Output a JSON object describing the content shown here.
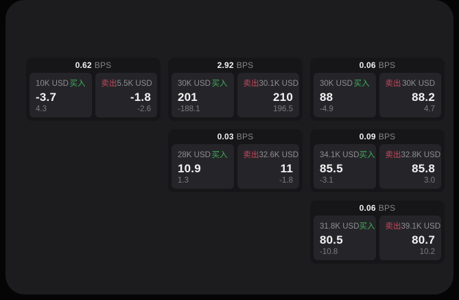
{
  "labels": {
    "bps_unit": "BPS",
    "buy": "买入",
    "sell": "卖出"
  },
  "colors": {
    "page_bg": "#050505",
    "window_bg": "#1c1c1e",
    "card_bg": "#161618",
    "panel_bg": "#252529",
    "buy_green": "#3eae5b",
    "sell_red": "#c8485f",
    "label_text": "#8e8e93",
    "big_text": "#f2f2f3",
    "delta_text": "#7c7c81",
    "unit_text": "#86868b"
  },
  "cards": [
    {
      "bps": "0.62",
      "buy": {
        "amount": "10K USD",
        "price": "-3.7",
        "delta": "4.3"
      },
      "sell": {
        "amount": "5.5K USD",
        "price": "-1.8",
        "delta": "-2.6"
      }
    },
    {
      "bps": "2.92",
      "buy": {
        "amount": "30K USD",
        "price": "201",
        "delta": "-188.1"
      },
      "sell": {
        "amount": "30.1K USD",
        "price": "210",
        "delta": "196.5"
      }
    },
    {
      "bps": "0.06",
      "buy": {
        "amount": "30K USD",
        "price": "88",
        "delta": "-4.9"
      },
      "sell": {
        "amount": "30K USD",
        "price": "88.2",
        "delta": "4.7"
      }
    },
    {
      "bps": "0.03",
      "buy": {
        "amount": "28K USD",
        "price": "10.9",
        "delta": "1.3"
      },
      "sell": {
        "amount": "32.6K USD",
        "price": "11",
        "delta": "-1.8"
      }
    },
    {
      "bps": "0.09",
      "buy": {
        "amount": "34.1K USD",
        "price": "85.5",
        "delta": "-3.1"
      },
      "sell": {
        "amount": "32.8K USD",
        "price": "85.8",
        "delta": "3.0"
      }
    },
    {
      "bps": "0.06",
      "buy": {
        "amount": "31.8K USD",
        "price": "80.5",
        "delta": "-10.8"
      },
      "sell": {
        "amount": "39.1K USD",
        "price": "80.7",
        "delta": "10.2"
      }
    }
  ]
}
